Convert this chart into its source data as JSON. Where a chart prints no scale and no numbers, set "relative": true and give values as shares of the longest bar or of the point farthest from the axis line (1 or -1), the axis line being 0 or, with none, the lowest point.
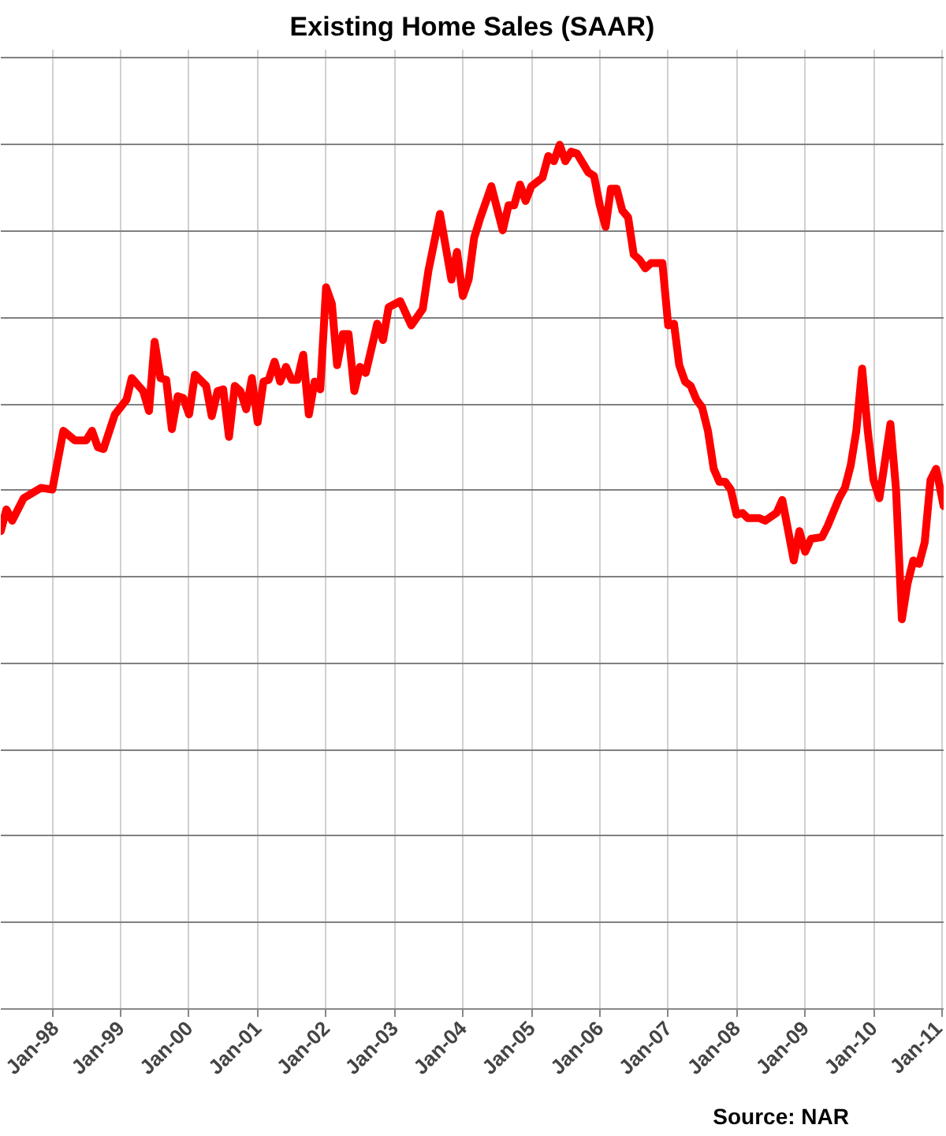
{
  "chart_data": {
    "type": "line",
    "title": "Existing Home Sales (SAAR)",
    "relative": true,
    "grid": true,
    "line_style": "solid",
    "annotations": [
      "Source: NAR"
    ],
    "xlim": [
      "1997-04",
      "2011-01-10"
    ],
    "xticks": [
      {
        "value": "1998-01",
        "label": "Jan-98"
      },
      {
        "value": "1999-01",
        "label": "Jan-99"
      },
      {
        "value": "2000-01",
        "label": "Jan-00"
      },
      {
        "value": "2001-01",
        "label": "Jan-01"
      },
      {
        "value": "2002-01",
        "label": "Jan-02"
      },
      {
        "value": "2003-01",
        "label": "Jan-03"
      },
      {
        "value": "2004-01",
        "label": "Jan-04"
      },
      {
        "value": "2005-01",
        "label": "Jan-05"
      },
      {
        "value": "2006-01",
        "label": "Jan-06"
      },
      {
        "value": "2007-01",
        "label": "Jan-07"
      },
      {
        "value": "2008-01",
        "label": "Jan-08"
      },
      {
        "value": "2009-01",
        "label": "Jan-09"
      },
      {
        "value": "2010-01",
        "label": "Jan-10"
      },
      {
        "value": "2011-01",
        "label": "Jan-11"
      }
    ],
    "x": [
      "1997-04",
      "1997-05",
      "1997-06",
      "1997-08",
      "1997-11",
      "1998-01",
      "1998-03",
      "1998-05",
      "1998-07",
      "1998-08",
      "1998-09",
      "1998-10",
      "1998-12",
      "1999-02",
      "1999-03",
      "1999-05",
      "1999-06",
      "1999-07",
      "1999-08",
      "1999-09",
      "1999-10",
      "1999-11",
      "1999-12",
      "2000-01",
      "2000-02",
      "2000-04",
      "2000-05",
      "2000-06",
      "2000-07",
      "2000-08",
      "2000-09",
      "2000-10",
      "2000-11",
      "2000-12",
      "2001-01",
      "2001-02",
      "2001-03",
      "2001-04",
      "2001-05",
      "2001-06",
      "2001-07",
      "2001-08",
      "2001-09",
      "2001-10",
      "2001-11",
      "2001-12",
      "2002-01",
      "2002-02",
      "2002-03",
      "2002-04",
      "2002-05",
      "2002-06",
      "2002-07",
      "2002-08",
      "2002-10",
      "2002-11",
      "2002-12",
      "2003-02",
      "2003-04",
      "2003-06",
      "2003-07",
      "2003-09",
      "2003-11",
      "2003-12",
      "2004-01",
      "2004-02",
      "2004-03",
      "2004-04",
      "2004-06",
      "2004-08",
      "2004-09",
      "2004-10",
      "2004-11",
      "2004-12",
      "2005-01",
      "2005-03",
      "2005-04",
      "2005-05",
      "2005-06",
      "2005-07",
      "2005-08",
      "2005-09",
      "2005-11",
      "2005-12",
      "2006-01",
      "2006-02",
      "2006-03",
      "2006-04",
      "2006-05",
      "2006-06",
      "2006-07",
      "2006-08",
      "2006-09",
      "2006-10",
      "2006-12",
      "2007-01",
      "2007-02",
      "2007-03",
      "2007-04",
      "2007-05",
      "2007-06",
      "2007-07",
      "2007-08",
      "2007-09",
      "2007-10",
      "2007-11",
      "2007-12",
      "2008-01",
      "2008-02",
      "2008-03",
      "2008-05",
      "2008-06",
      "2008-08",
      "2008-09",
      "2008-10",
      "2008-11",
      "2008-12",
      "2009-01",
      "2009-02",
      "2009-04",
      "2009-05",
      "2009-07",
      "2009-08",
      "2009-09",
      "2009-10",
      "2009-11",
      "2009-12",
      "2010-01",
      "2010-02",
      "2010-03",
      "2010-04",
      "2010-05",
      "2010-06",
      "2010-07",
      "2010-08",
      "2010-09",
      "2010-10",
      "2010-11",
      "2010-12",
      "2011-01-10"
    ],
    "series": [
      {
        "color": "#ff0000",
        "values": [
          0.553,
          0.578,
          0.565,
          0.591,
          0.603,
          0.601,
          0.669,
          0.658,
          0.658,
          0.669,
          0.65,
          0.648,
          0.688,
          0.705,
          0.73,
          0.715,
          0.692,
          0.772,
          0.73,
          0.728,
          0.671,
          0.709,
          0.707,
          0.688,
          0.734,
          0.721,
          0.686,
          0.715,
          0.717,
          0.662,
          0.721,
          0.715,
          0.694,
          0.73,
          0.679,
          0.726,
          0.728,
          0.749,
          0.726,
          0.743,
          0.728,
          0.728,
          0.757,
          0.688,
          0.726,
          0.717,
          0.835,
          0.816,
          0.745,
          0.781,
          0.781,
          0.715,
          0.743,
          0.736,
          0.793,
          0.774,
          0.812,
          0.819,
          0.791,
          0.81,
          0.854,
          0.92,
          0.844,
          0.876,
          0.825,
          0.844,
          0.892,
          0.914,
          0.952,
          0.901,
          0.93,
          0.93,
          0.954,
          0.935,
          0.952,
          0.962,
          0.987,
          0.981,
          1.0,
          0.981,
          0.992,
          0.99,
          0.968,
          0.964,
          0.93,
          0.905,
          0.949,
          0.949,
          0.924,
          0.916,
          0.873,
          0.867,
          0.857,
          0.863,
          0.863,
          0.791,
          0.793,
          0.745,
          0.726,
          0.721,
          0.705,
          0.696,
          0.669,
          0.625,
          0.61,
          0.61,
          0.601,
          0.572,
          0.574,
          0.568,
          0.568,
          0.565,
          0.574,
          0.589,
          0.555,
          0.519,
          0.553,
          0.529,
          0.544,
          0.546,
          0.559,
          0.591,
          0.603,
          0.629,
          0.669,
          0.741,
          0.669,
          0.612,
          0.591,
          0.631,
          0.677,
          0.601,
          0.451,
          0.492,
          0.519,
          0.515,
          0.54,
          0.612,
          0.625,
          0.582
        ]
      }
    ]
  }
}
